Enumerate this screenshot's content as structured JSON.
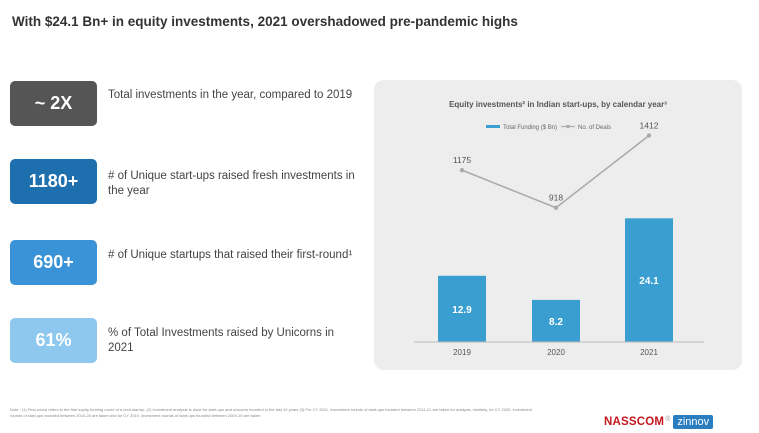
{
  "header": {
    "title": "With $24.1 Bn+ in equity investments, 2021 overshadowed pre-pandemic highs"
  },
  "stats": [
    {
      "value": "~ 2X",
      "desc": "Total investments in the year, compared to 2019",
      "color": "#555555"
    },
    {
      "value": "1180+",
      "desc": "# of Unique start-ups raised fresh investments in the year",
      "color": "#1e6fae"
    },
    {
      "value": "690+",
      "desc": "# of Unique startups that raised their first-round¹",
      "color": "#3a93d6"
    },
    {
      "value": "61%",
      "desc": "% of Total Investments raised by Unicorns in 2021",
      "color": "#8ec8ee"
    }
  ],
  "chart_data": {
    "type": "bar+line",
    "title": "Equity investments² in Indian start-ups, by calendar year³",
    "categories": [
      "2019",
      "2020",
      "2021"
    ],
    "series": [
      {
        "name": "Total Funding ($ Bn)",
        "type": "bar",
        "values": [
          12.9,
          8.2,
          24.1
        ],
        "labels": [
          "12.9",
          "8.2",
          "24.1"
        ],
        "color": "#3a9fd0"
      },
      {
        "name": "No. of Deals",
        "type": "line",
        "values": [
          1175,
          918,
          1412
        ],
        "labels": [
          "1175",
          "918",
          "1412"
        ],
        "color": "#aaaaaa"
      }
    ],
    "legend_position": "top-center",
    "bar_ylim": [
      0,
      30
    ],
    "line_ylim": [
      0,
      1600
    ],
    "grid": false
  },
  "footnote": "Note : (1) First-round refers to the first equity funding round of a tech startup. (2) Investment analysis is done for start-ups and unicorns founded in the last 10 years (3) For CY 2021, investment rounds of start-ups founded between 2011-21 are taken for analysis, similarly, for CY 2020, investment rounds of start-ups founded between 2010-20 are taken and for CY 2019, investment rounds of start-ups founded between 2009-19 are taken",
  "branding": {
    "logo1": "NASSCOM",
    "logo_mark": "®",
    "logo2": "zinnov"
  }
}
